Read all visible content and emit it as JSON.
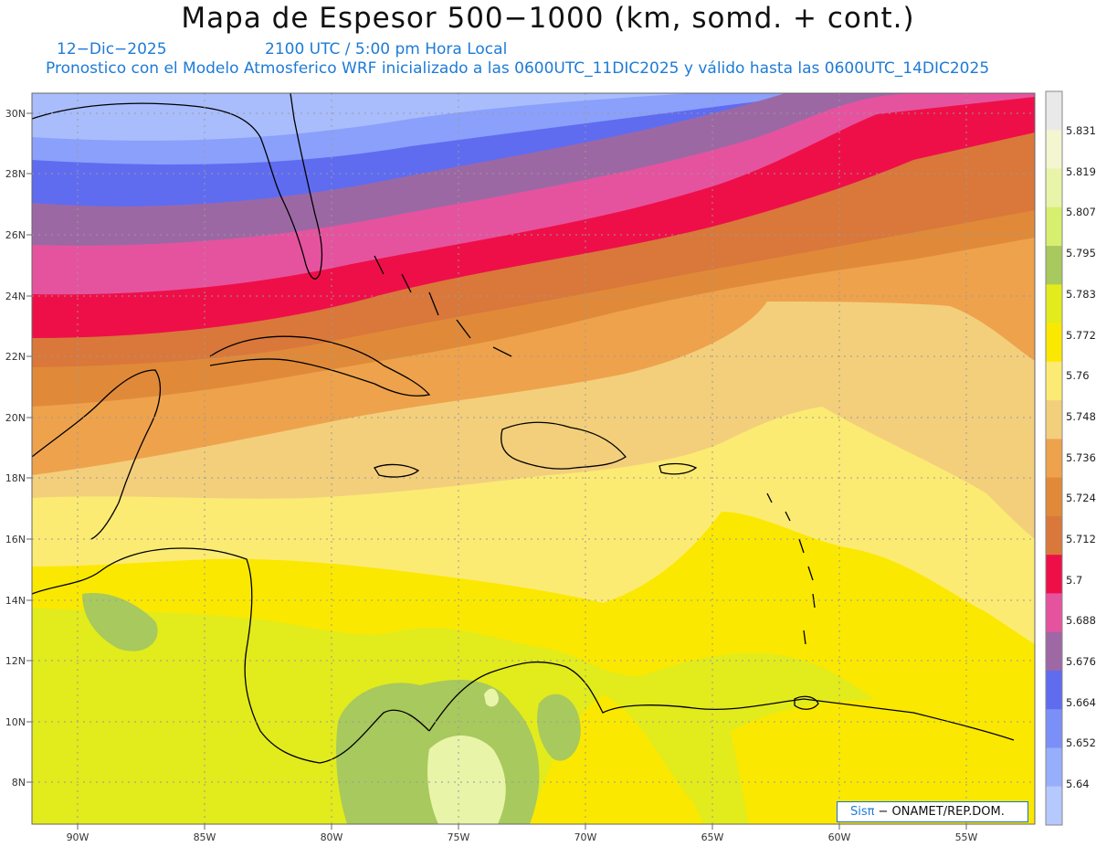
{
  "header": {
    "title": "Mapa de Espesor 500−1000 (km, somd. + cont.)",
    "date": "12−Dic−2025",
    "time": "2100 UTC / 5:00 pm Hora Local",
    "description": "Pronostico con el Modelo Atmosferico WRF inicializado a las 0600UTC_11DIC2025 y válido hasta las  0600UTC_14DIC2025"
  },
  "axes": {
    "lat_labels": [
      "30N",
      "28N",
      "26N",
      "24N",
      "22N",
      "20N",
      "18N",
      "16N",
      "14N",
      "12N",
      "10N",
      "8N"
    ],
    "lon_labels": [
      "90W",
      "85W",
      "80W",
      "75W",
      "70W",
      "65W",
      "60W",
      "55W"
    ]
  },
  "colorbar": {
    "labels": [
      "5.831",
      "5.819",
      "5.807",
      "5.795",
      "5.783",
      "5.772",
      "5.76",
      "5.748",
      "5.736",
      "5.724",
      "5.712",
      "5.7",
      "5.688",
      "5.676",
      "5.664",
      "5.652",
      "5.64"
    ],
    "colors": [
      "#e9e9e9",
      "#f3f6d1",
      "#e8f4a8",
      "#d8ee6e",
      "#a8c95d",
      "#e2eb1c",
      "#fbe800",
      "#fceb73",
      "#f3cf7c",
      "#eea24c",
      "#e08a39",
      "#d9783a",
      "#ee0f49",
      "#e5539f",
      "#9e68a4",
      "#5f6cf0",
      "#7b8ff9",
      "#97aefc",
      "#b5c9fe"
    ],
    "colors_order": "top-to-bottom"
  },
  "legend_colors": {
    "lt_5.652": "#9fb6fd",
    "5.652_5.664": "#7f94fa",
    "5.664_5.676": "#5f6cf0",
    "5.676_5.688": "#9c68a4",
    "5.688_5.700": "#e5539f",
    "5.700_5.712": "#ee0f49",
    "5.712_5.724": "#d9783a",
    "5.724_5.736": "#e08a39",
    "5.736_5.748": "#eea24c",
    "5.748_5.760": "#f3cf7c",
    "5.760_5.772": "#fceb73",
    "5.772_5.783": "#fbe800",
    "5.783_5.795": "#e2eb1c",
    "5.795_5.807": "#a8c95d",
    "5.807_5.819": "#e8f4a8"
  },
  "credit": {
    "logo": "Sisπ",
    "org": "− ONAMET/REP.DOM."
  }
}
